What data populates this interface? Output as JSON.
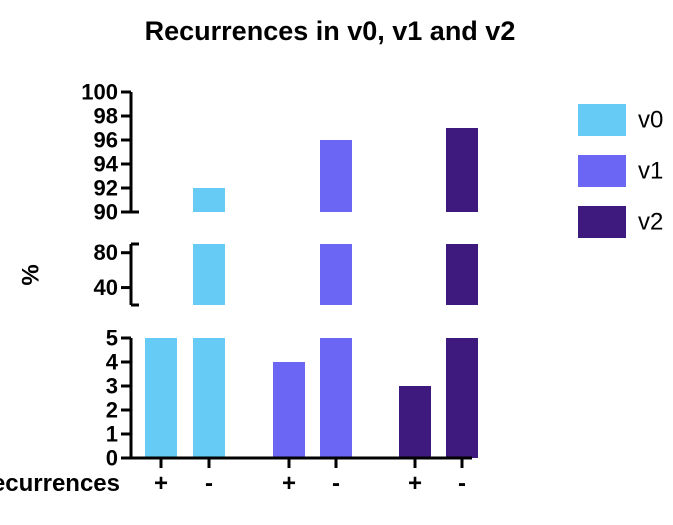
{
  "chart_data": {
    "type": "bar",
    "title": "Recurrences in v0, v1 and v2",
    "ylabel": "%",
    "xlabel": "Recurrences",
    "y_axis": "broken",
    "y_segments": [
      {
        "range": [
          0,
          5
        ],
        "ticks": [
          "0",
          "1",
          "2",
          "3",
          "4",
          "5"
        ]
      },
      {
        "range": [
          20,
          90
        ],
        "ticks": [
          "40",
          "80"
        ]
      },
      {
        "range": [
          90,
          100
        ],
        "ticks": [
          "90",
          "92",
          "94",
          "96",
          "98",
          "100"
        ]
      }
    ],
    "categories": [
      "+",
      "-",
      "+",
      "-",
      "+",
      "-"
    ],
    "series": [
      {
        "name": "v0",
        "color": "#66CCF6",
        "bars": [
          {
            "category": "+",
            "value": 5
          },
          {
            "category": "-",
            "value": 92
          }
        ]
      },
      {
        "name": "v1",
        "color": "#6B66F4",
        "bars": [
          {
            "category": "+",
            "value": 4
          },
          {
            "category": "-",
            "value": 96
          }
        ]
      },
      {
        "name": "v2",
        "color": "#3F1A7E",
        "bars": [
          {
            "category": "+",
            "value": 3
          },
          {
            "category": "-",
            "value": 97
          }
        ]
      }
    ],
    "legend": "right"
  }
}
